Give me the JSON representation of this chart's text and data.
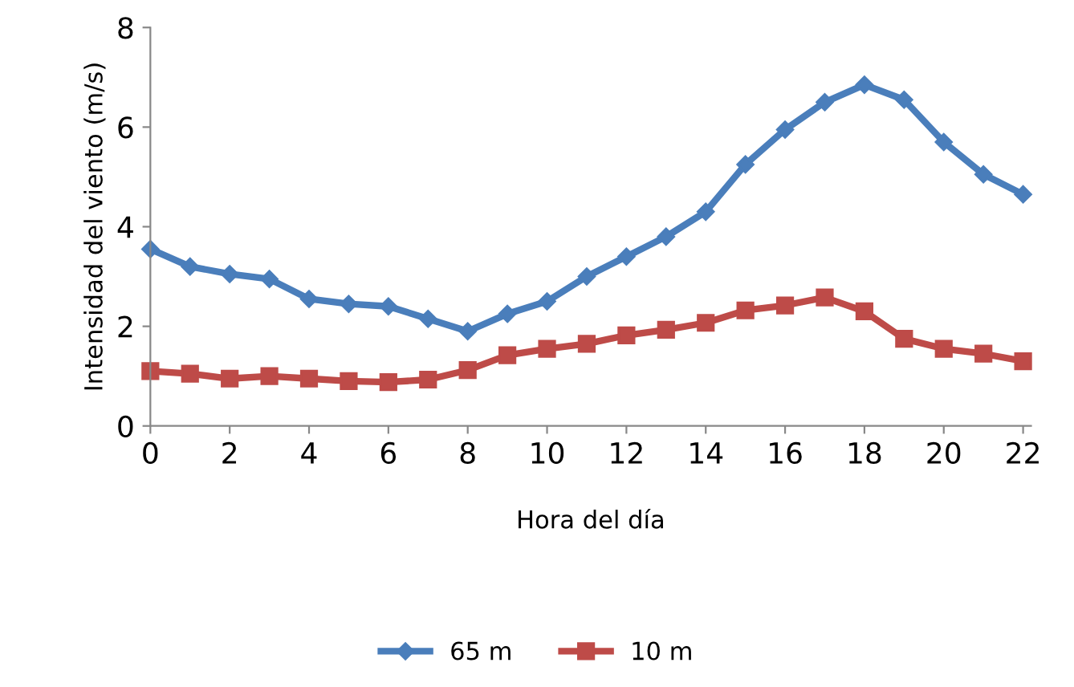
{
  "chart_data": {
    "type": "line",
    "xlabel": "Hora del día",
    "ylabel": "Intensidad del viento (m/s)",
    "x": [
      0,
      1,
      2,
      3,
      4,
      5,
      6,
      7,
      8,
      9,
      10,
      11,
      12,
      13,
      14,
      15,
      16,
      17,
      18,
      19,
      20,
      21,
      22
    ],
    "series": [
      {
        "name": "65 m",
        "color": "#4a7ebb",
        "marker": "diamond",
        "values": [
          3.55,
          3.2,
          3.05,
          2.95,
          2.55,
          2.45,
          2.4,
          2.15,
          1.9,
          2.25,
          2.5,
          3.0,
          3.4,
          3.8,
          4.3,
          5.25,
          5.95,
          6.5,
          6.85,
          6.55,
          5.7,
          5.05,
          4.65
        ]
      },
      {
        "name": "10 m",
        "color": "#be4b48",
        "marker": "square",
        "values": [
          1.1,
          1.05,
          0.95,
          1.0,
          0.95,
          0.9,
          0.88,
          0.93,
          1.12,
          1.42,
          1.55,
          1.65,
          1.82,
          1.93,
          2.07,
          2.32,
          2.42,
          2.58,
          2.3,
          1.75,
          1.55,
          1.45,
          1.3
        ]
      }
    ],
    "xlim": [
      0,
      22.2
    ],
    "xticks": [
      0,
      2,
      4,
      6,
      8,
      10,
      12,
      14,
      16,
      18,
      20,
      22
    ],
    "ylim": [
      0,
      8
    ],
    "yticks": [
      0,
      2,
      4,
      6,
      8
    ],
    "grid": false,
    "legend": "bottom",
    "line_style": "solid"
  }
}
